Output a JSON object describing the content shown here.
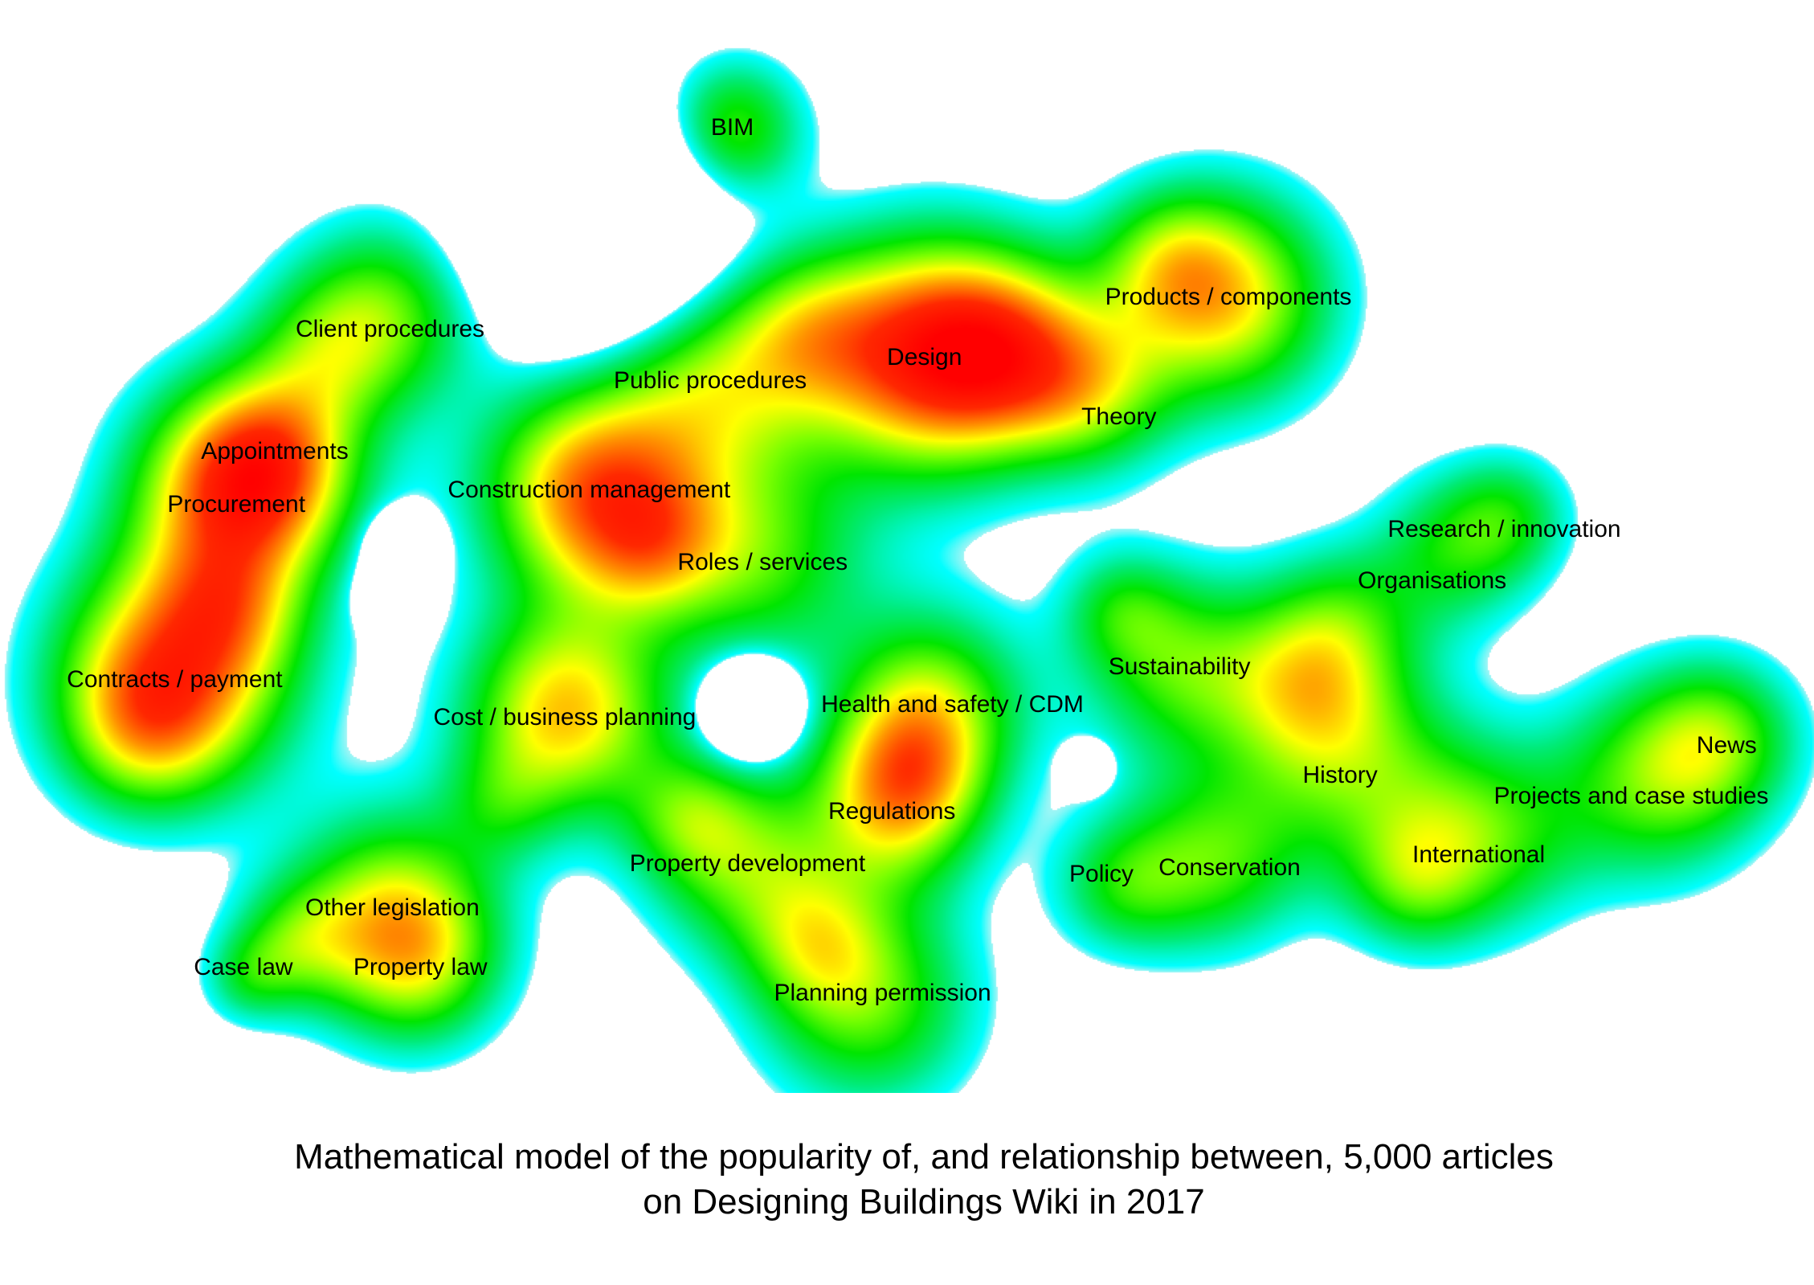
{
  "caption": {
    "line1": "Mathematical model of the popularity of, and relationship between, 5,000 articles",
    "line2": "on Designing Buildings Wiki in 2017"
  },
  "color_scale": {
    "background": "#ffffff",
    "rim": "#bff5f5",
    "low": "#00ffff",
    "mid_low": "#00e600",
    "mid": "#66ff00",
    "mid_high": "#ffff00",
    "high": "#ff8c00",
    "peak": "#ff0000"
  },
  "topics": [
    {
      "id": "bim",
      "label": "BIM"
    },
    {
      "id": "client-procedures",
      "label": "Client procedures"
    },
    {
      "id": "public-procedures",
      "label": "Public procedures"
    },
    {
      "id": "design",
      "label": "Design"
    },
    {
      "id": "products-components",
      "label": "Products / components"
    },
    {
      "id": "theory",
      "label": "Theory"
    },
    {
      "id": "appointments",
      "label": "Appointments"
    },
    {
      "id": "procurement",
      "label": "Procurement"
    },
    {
      "id": "construction-management",
      "label": "Construction management"
    },
    {
      "id": "roles-services",
      "label": "Roles / services"
    },
    {
      "id": "research-innovation",
      "label": "Research / innovation"
    },
    {
      "id": "organisations",
      "label": "Organisations"
    },
    {
      "id": "contracts-payment",
      "label": "Contracts / payment"
    },
    {
      "id": "cost-business-planning",
      "label": "Cost / business planning"
    },
    {
      "id": "health-safety-cdm",
      "label": "Health and safety / CDM"
    },
    {
      "id": "sustainability",
      "label": "Sustainability"
    },
    {
      "id": "news",
      "label": "News"
    },
    {
      "id": "history",
      "label": "History"
    },
    {
      "id": "projects-case-studies",
      "label": "Projects and case studies"
    },
    {
      "id": "regulations",
      "label": "Regulations"
    },
    {
      "id": "property-development",
      "label": "Property development"
    },
    {
      "id": "policy",
      "label": "Policy"
    },
    {
      "id": "conservation",
      "label": "Conservation"
    },
    {
      "id": "international",
      "label": "International"
    },
    {
      "id": "other-legislation",
      "label": "Other legislation"
    },
    {
      "id": "case-law",
      "label": "Case law"
    },
    {
      "id": "property-law",
      "label": "Property law"
    },
    {
      "id": "planning-permission",
      "label": "Planning permission"
    }
  ]
}
